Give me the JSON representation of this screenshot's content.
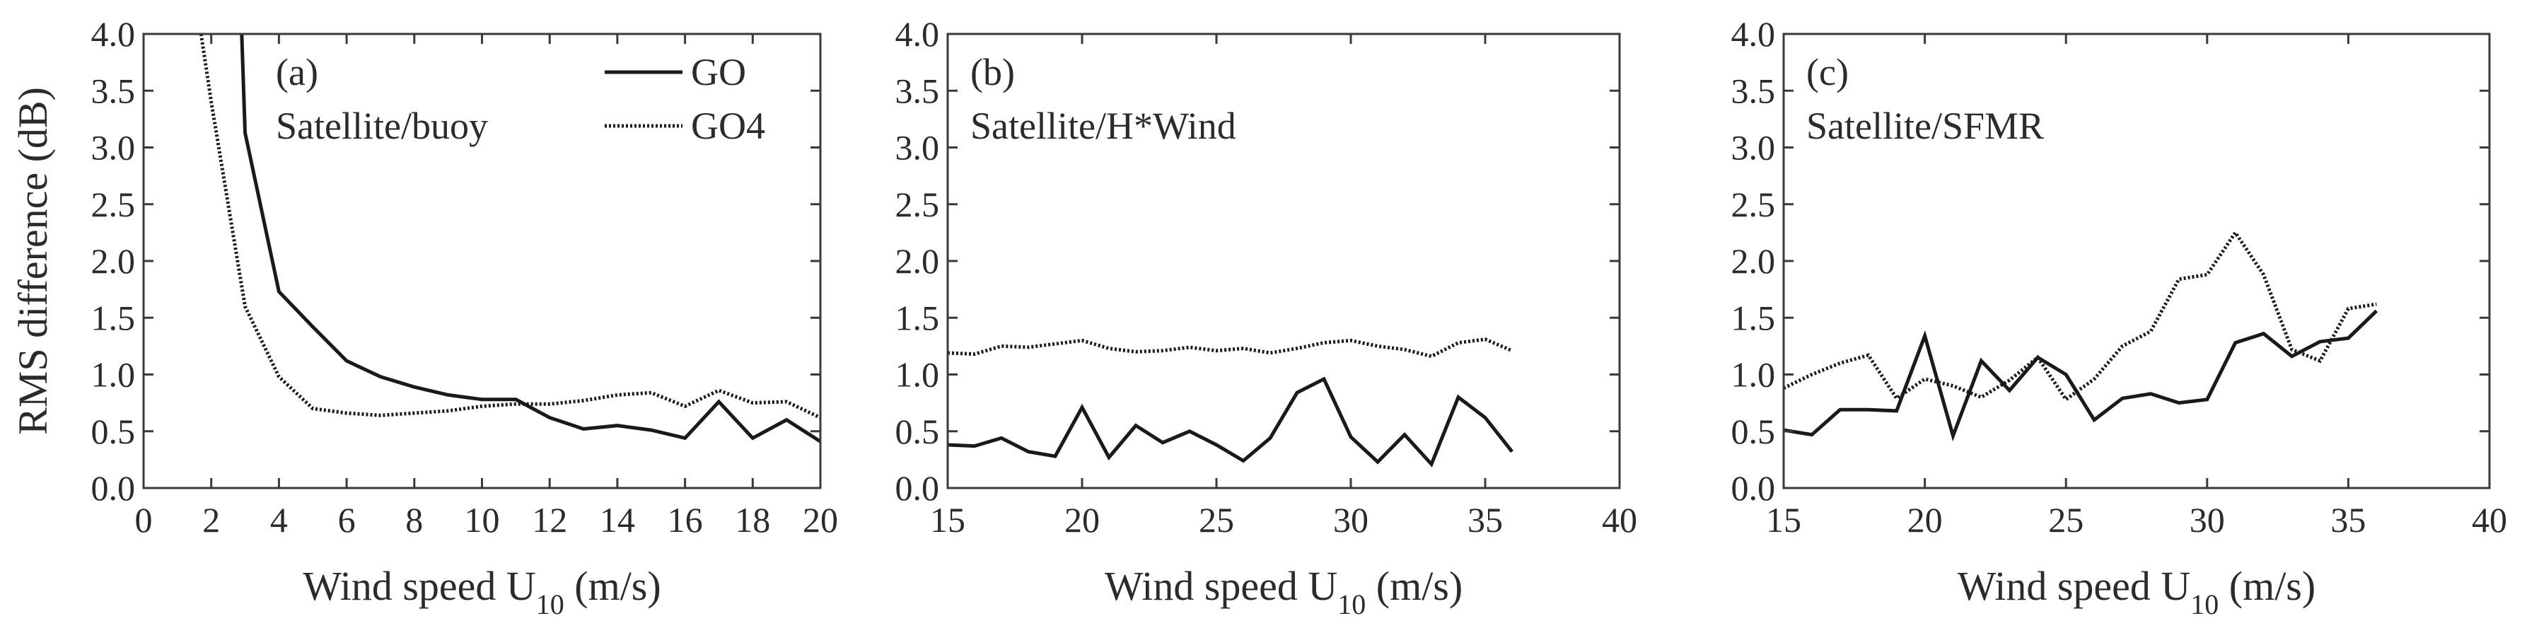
{
  "colors": {
    "line": "#1a1a1a",
    "axis": "#3a3a3a",
    "text": "#2b2b2b",
    "background": "#ffffff"
  },
  "chart_data": [
    {
      "type": "line",
      "panel_label": "(a)",
      "annotation": "Satellite/buoy",
      "xlabel": "Wind speed U",
      "xlabel_sub": "10",
      "xlabel_unit": " (m/s)",
      "ylabel": "RMS difference (dB)",
      "xlim": [
        0,
        20
      ],
      "ylim": [
        0,
        4
      ],
      "xticks": [
        "0",
        "2",
        "4",
        "6",
        "8",
        "10",
        "12",
        "14",
        "16",
        "18",
        "20"
      ],
      "yticks": [
        "0.0",
        "0.5",
        "1.0",
        "1.5",
        "2.0",
        "2.5",
        "3.0",
        "3.5",
        "4.0"
      ],
      "legend_position": "top-right",
      "series": [
        {
          "name": "GO",
          "style": "solid",
          "x": [
            2.9,
            3,
            4,
            5,
            6,
            7,
            8,
            9,
            10,
            11,
            12,
            13,
            14,
            15,
            16,
            17,
            18,
            19,
            20
          ],
          "y": [
            4.0,
            3.13,
            1.73,
            1.42,
            1.12,
            0.98,
            0.89,
            0.82,
            0.78,
            0.78,
            0.62,
            0.52,
            0.55,
            0.51,
            0.44,
            0.76,
            0.44,
            0.6,
            0.41
          ]
        },
        {
          "name": "GO4",
          "style": "dotted",
          "x": [
            1.7,
            2,
            3,
            4,
            5,
            6,
            7,
            8,
            9,
            10,
            11,
            12,
            13,
            14,
            15,
            16,
            17,
            18,
            19,
            20
          ],
          "y": [
            4.0,
            3.4,
            1.6,
            0.98,
            0.7,
            0.66,
            0.64,
            0.66,
            0.68,
            0.72,
            0.74,
            0.74,
            0.77,
            0.82,
            0.84,
            0.72,
            0.86,
            0.75,
            0.76,
            0.62
          ]
        }
      ]
    },
    {
      "type": "line",
      "panel_label": "(b)",
      "annotation": "Satellite/H*Wind",
      "xlabel": "Wind speed U",
      "xlabel_sub": "10",
      "xlabel_unit": " (m/s)",
      "ylabel": "",
      "xlim": [
        15,
        40
      ],
      "ylim": [
        0,
        4
      ],
      "xticks": [
        "15",
        "20",
        "25",
        "30",
        "35",
        "40"
      ],
      "yticks": [
        "0.0",
        "0.5",
        "1.0",
        "1.5",
        "2.0",
        "2.5",
        "3.0",
        "3.5",
        "4.0"
      ],
      "series": [
        {
          "name": "GO",
          "style": "solid",
          "x": [
            15,
            16,
            17,
            18,
            19,
            20,
            21,
            22,
            23,
            24,
            25,
            26,
            27,
            28,
            29,
            30,
            31,
            32,
            33,
            34,
            35,
            36
          ],
          "y": [
            0.38,
            0.37,
            0.44,
            0.32,
            0.28,
            0.71,
            0.27,
            0.55,
            0.4,
            0.5,
            0.38,
            0.24,
            0.44,
            0.84,
            0.96,
            0.45,
            0.23,
            0.47,
            0.21,
            0.8,
            0.62,
            0.32
          ]
        },
        {
          "name": "GO4",
          "style": "dotted",
          "x": [
            15,
            16,
            17,
            18,
            19,
            20,
            21,
            22,
            23,
            24,
            25,
            26,
            27,
            28,
            29,
            30,
            31,
            32,
            33,
            34,
            35,
            36
          ],
          "y": [
            1.19,
            1.18,
            1.25,
            1.24,
            1.27,
            1.3,
            1.23,
            1.2,
            1.21,
            1.24,
            1.21,
            1.23,
            1.19,
            1.23,
            1.28,
            1.3,
            1.25,
            1.22,
            1.16,
            1.28,
            1.31,
            1.21
          ]
        }
      ]
    },
    {
      "type": "line",
      "panel_label": "(c)",
      "annotation": "Satellite/SFMR",
      "xlabel": "Wind speed U",
      "xlabel_sub": "10",
      "xlabel_unit": " (m/s)",
      "ylabel": "",
      "xlim": [
        15,
        40
      ],
      "ylim": [
        0,
        4
      ],
      "xticks": [
        "15",
        "20",
        "25",
        "30",
        "35",
        "40"
      ],
      "yticks": [
        "0.0",
        "0.5",
        "1.0",
        "1.5",
        "2.0",
        "2.5",
        "3.0",
        "3.5",
        "4.0"
      ],
      "series": [
        {
          "name": "GO",
          "style": "solid",
          "x": [
            15,
            16,
            17,
            18,
            19,
            20,
            21,
            22,
            23,
            24,
            25,
            26,
            27,
            28,
            29,
            30,
            31,
            32,
            33,
            34,
            35,
            36
          ],
          "y": [
            0.51,
            0.47,
            0.69,
            0.69,
            0.68,
            1.34,
            0.46,
            1.12,
            0.86,
            1.15,
            1.0,
            0.6,
            0.79,
            0.83,
            0.75,
            0.78,
            1.28,
            1.36,
            1.16,
            1.29,
            1.32,
            1.56
          ]
        },
        {
          "name": "GO4",
          "style": "dotted",
          "x": [
            15,
            16,
            17,
            18,
            19,
            20,
            21,
            22,
            23,
            24,
            25,
            26,
            27,
            28,
            29,
            30,
            31,
            32,
            33,
            34,
            35,
            36
          ],
          "y": [
            0.88,
            1.0,
            1.1,
            1.17,
            0.79,
            0.96,
            0.9,
            0.8,
            0.95,
            1.15,
            0.78,
            0.96,
            1.25,
            1.38,
            1.84,
            1.88,
            2.25,
            1.88,
            1.22,
            1.12,
            1.58,
            1.62
          ]
        }
      ]
    }
  ]
}
